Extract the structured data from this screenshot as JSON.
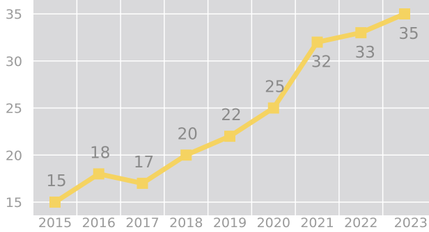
{
  "chart_data": {
    "type": "line",
    "title": "",
    "xlabel": "",
    "ylabel": "",
    "categories": [
      "2015",
      "2016",
      "2017",
      "2018",
      "2019",
      "2020",
      "2021",
      "2022",
      "2023"
    ],
    "series": [
      {
        "values": [
          15,
          18,
          17,
          20,
          22,
          25,
          32,
          33,
          35
        ]
      }
    ],
    "data_labels": [
      "15",
      "18",
      "17",
      "20",
      "22",
      "25",
      "32",
      "33",
      "35"
    ],
    "y_ticks": [
      "15",
      "20",
      "25",
      "30",
      "35"
    ],
    "ylim": [
      15,
      35
    ],
    "grid": true,
    "legend": "none",
    "colors": {
      "plot_background": "#d9d9db",
      "gridline": "#ffffff",
      "line": "#f5d361",
      "marker": "#f5d361"
    }
  }
}
